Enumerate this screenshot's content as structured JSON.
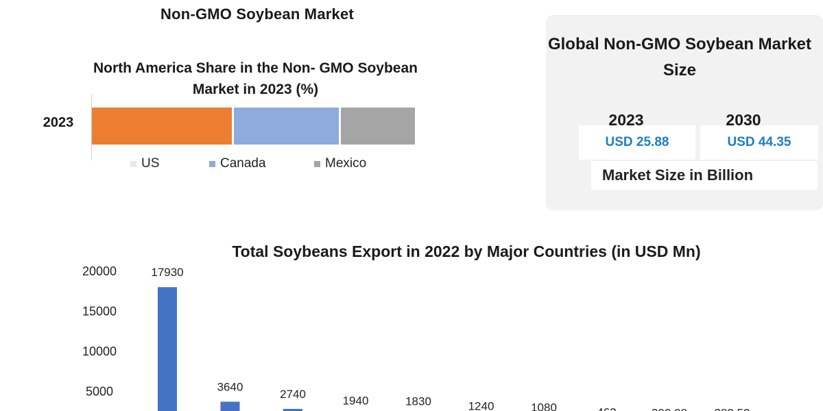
{
  "page": {
    "title": "Non-GMO Soybean Market"
  },
  "chart_data": [
    {
      "type": "bar",
      "orientation": "horizontal",
      "stacked": true,
      "title": "North America Share in the Non- GMO Soybean Market in 2023 (%)",
      "categories": [
        "2023"
      ],
      "series": [
        {
          "name": "US",
          "values": [
            44
          ],
          "color": "#ed7d31"
        },
        {
          "name": "Canada",
          "values": [
            33
          ],
          "color": "#8faadc"
        },
        {
          "name": "Mexico",
          "values": [
            23
          ],
          "color": "#a5a5a5"
        }
      ],
      "legend": "bottom",
      "grid": false
    },
    {
      "type": "bar",
      "title": "Total Soybeans Export in 2022 by Major Countries (in USD Mn)",
      "categories": [
        "",
        "",
        "",
        "",
        "",
        "",
        "",
        "",
        "",
        ""
      ],
      "values": [
        17930,
        3640,
        2740,
        1940,
        1830,
        1240,
        1080,
        462,
        390.08,
        382.52
      ],
      "value_labels": [
        "17930",
        "3640",
        "2740",
        "1940",
        "1830",
        "1240",
        "1080",
        "462",
        "390.08",
        "382.52"
      ],
      "ylim": [
        0,
        20000
      ],
      "yticks": [
        "20000",
        "15000",
        "10000",
        "5000"
      ],
      "ytick_values": [
        20000,
        15000,
        10000,
        5000
      ],
      "color": "#4472c4",
      "grid": false
    }
  ],
  "market_size": {
    "title": "Global Non-GMO Soybean Market Size",
    "years": [
      "2023",
      "2030"
    ],
    "values": [
      "USD 25.88",
      "USD 44.35"
    ],
    "unit_label": "Market Size in Billion",
    "accent": "#1a7fc4"
  }
}
